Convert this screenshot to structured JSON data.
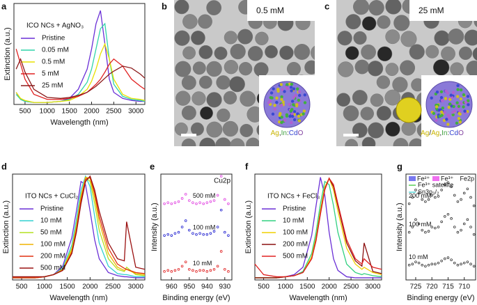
{
  "chart_data": [
    {
      "panel": "a",
      "type": "line",
      "title": "ICO NCs + AgNO₃",
      "xlabel": "Wavelength (nm)",
      "ylabel": "Extinction (a.u.)",
      "x": [
        300,
        400,
        500,
        700,
        1000,
        1300,
        1500,
        1700,
        1900,
        2000,
        2100,
        2200,
        2300,
        2400,
        2500,
        2700,
        2900,
        3100,
        3200
      ],
      "xlim": [
        250,
        3200
      ],
      "xticks": [
        500,
        1000,
        1500,
        2000,
        2500,
        3000
      ],
      "ylim": [
        0,
        1
      ],
      "series": [
        {
          "name": "Pristine",
          "color": "#6a2fd6",
          "values": [
            0.12,
            0.05,
            0.03,
            0.02,
            0.02,
            0.03,
            0.06,
            0.15,
            0.35,
            0.55,
            0.8,
            0.93,
            0.6,
            0.25,
            0.12,
            0.06,
            0.04,
            0.03,
            0.03
          ]
        },
        {
          "name": "0.05 mM",
          "color": "#2fd4a8",
          "values": [
            0.1,
            0.05,
            0.03,
            0.02,
            0.02,
            0.03,
            0.05,
            0.1,
            0.22,
            0.35,
            0.55,
            0.75,
            0.8,
            0.45,
            0.2,
            0.08,
            0.05,
            0.04,
            0.03
          ]
        },
        {
          "name": "0.5 mM",
          "color": "#e8e000",
          "values": [
            0.12,
            0.06,
            0.04,
            0.02,
            0.02,
            0.03,
            0.04,
            0.08,
            0.15,
            0.23,
            0.35,
            0.5,
            0.6,
            0.45,
            0.25,
            0.1,
            0.06,
            0.05,
            0.04
          ]
        },
        {
          "name": "5 mM",
          "color": "#e02020",
          "values": [
            0.55,
            0.4,
            0.25,
            0.1,
            0.05,
            0.05,
            0.06,
            0.08,
            0.12,
            0.16,
            0.2,
            0.25,
            0.32,
            0.4,
            0.45,
            0.38,
            0.25,
            0.18,
            0.15
          ]
        },
        {
          "name": "25 mM",
          "color": "#8b1a1a",
          "values": [
            0.35,
            0.45,
            0.32,
            0.15,
            0.07,
            0.06,
            0.07,
            0.09,
            0.12,
            0.15,
            0.18,
            0.22,
            0.26,
            0.3,
            0.33,
            0.38,
            0.36,
            0.3,
            0.26
          ]
        }
      ]
    },
    {
      "panel": "d",
      "type": "line",
      "title": "ITO NCs + CuCl₂",
      "xlabel": "Wavelength (nm)",
      "ylabel": "Extinction (a.u.)",
      "x": [
        300,
        500,
        800,
        1000,
        1200,
        1400,
        1600,
        1700,
        1800,
        1900,
        2000,
        2100,
        2200,
        2400,
        2600,
        2750,
        2800,
        3000,
        3200
      ],
      "xlim": [
        300,
        3200
      ],
      "xticks": [
        500,
        1000,
        1500,
        2000,
        2500,
        3000
      ],
      "ylim": [
        0,
        1
      ],
      "series": [
        {
          "name": "Pristine",
          "color": "#6a2fd6",
          "values": [
            0.02,
            0.02,
            0.02,
            0.03,
            0.05,
            0.13,
            0.4,
            0.65,
            0.93,
            0.9,
            0.65,
            0.38,
            0.2,
            0.07,
            0.04,
            0.03,
            0.03,
            0.02,
            0.02
          ]
        },
        {
          "name": "10 mM",
          "color": "#30d0d0",
          "values": [
            0.02,
            0.02,
            0.02,
            0.03,
            0.05,
            0.11,
            0.33,
            0.57,
            0.85,
            0.98,
            0.88,
            0.6,
            0.35,
            0.13,
            0.06,
            0.05,
            0.05,
            0.03,
            0.03
          ]
        },
        {
          "name": "50 mM",
          "color": "#b4e020",
          "values": [
            0.02,
            0.02,
            0.02,
            0.03,
            0.05,
            0.1,
            0.3,
            0.52,
            0.8,
            0.97,
            0.93,
            0.72,
            0.47,
            0.2,
            0.1,
            0.08,
            0.12,
            0.05,
            0.04
          ]
        },
        {
          "name": "100 mM",
          "color": "#f0b400",
          "values": [
            0.02,
            0.02,
            0.02,
            0.03,
            0.05,
            0.1,
            0.28,
            0.5,
            0.78,
            0.97,
            0.96,
            0.78,
            0.55,
            0.25,
            0.12,
            0.09,
            0.1,
            0.06,
            0.05
          ]
        },
        {
          "name": "200 mM",
          "color": "#e03010",
          "values": [
            0.02,
            0.02,
            0.02,
            0.03,
            0.05,
            0.09,
            0.26,
            0.47,
            0.75,
            0.95,
            0.97,
            0.82,
            0.6,
            0.3,
            0.15,
            0.11,
            0.1,
            0.07,
            0.06
          ]
        },
        {
          "name": "500 mM",
          "color": "#9a1010",
          "values": [
            0.03,
            0.03,
            0.03,
            0.03,
            0.05,
            0.09,
            0.25,
            0.45,
            0.72,
            0.93,
            0.98,
            0.85,
            0.65,
            0.35,
            0.2,
            0.18,
            0.55,
            0.12,
            0.1
          ]
        }
      ]
    },
    {
      "panel": "e",
      "type": "scatter",
      "title": "Cu2p",
      "xlabel": "Binding energy (eV)",
      "ylabel": "Intensity (a.u.)",
      "x": [
        964,
        962,
        960,
        958,
        956,
        954,
        952,
        950,
        948,
        946,
        944,
        942,
        940,
        938,
        936,
        934,
        932,
        930,
        928
      ],
      "xlim": [
        966,
        926
      ],
      "xticks": [
        960,
        950,
        940,
        930
      ],
      "ylim": [
        0,
        1
      ],
      "series": [
        {
          "name": "500 mM",
          "color": "#e040e0",
          "values": [
            0.72,
            0.73,
            0.72,
            0.73,
            0.74,
            0.77,
            0.81,
            0.75,
            0.73,
            0.72,
            0.73,
            0.72,
            0.73,
            0.74,
            0.75,
            0.8,
            0.98,
            0.76,
            0.72
          ]
        },
        {
          "name": "100 mM",
          "color": "#2020d0",
          "values": [
            0.42,
            0.43,
            0.42,
            0.44,
            0.45,
            0.5,
            0.56,
            0.47,
            0.44,
            0.43,
            0.44,
            0.43,
            0.43,
            0.44,
            0.46,
            0.5,
            0.66,
            0.45,
            0.42
          ]
        },
        {
          "name": "10 mM",
          "color": "#e02020",
          "values": [
            0.08,
            0.09,
            0.08,
            0.09,
            0.1,
            0.13,
            0.17,
            0.1,
            0.09,
            0.08,
            0.09,
            0.09,
            0.08,
            0.09,
            0.1,
            0.13,
            0.27,
            0.1,
            0.08
          ]
        }
      ]
    },
    {
      "panel": "f",
      "type": "line",
      "title": "ITO NCs + FeCl₃",
      "xlabel": "Wavelength (nm)",
      "ylabel": "Extinction (a.u.)",
      "x": [
        300,
        500,
        800,
        1000,
        1200,
        1400,
        1600,
        1700,
        1800,
        1900,
        2000,
        2100,
        2200,
        2400,
        2600,
        2750,
        2800,
        3000,
        3200
      ],
      "xlim": [
        300,
        3200
      ],
      "xticks": [
        500,
        1000,
        1500,
        2000,
        2500,
        3000
      ],
      "ylim": [
        0,
        1
      ],
      "series": [
        {
          "name": "Pristine",
          "color": "#6a2fd6",
          "values": [
            0.02,
            0.02,
            0.02,
            0.03,
            0.05,
            0.12,
            0.42,
            0.7,
            0.97,
            0.8,
            0.45,
            0.2,
            0.09,
            0.03,
            0.02,
            0.02,
            0.02,
            0.02,
            0.02
          ]
        },
        {
          "name": "10 mM",
          "color": "#30d080",
          "values": [
            0.02,
            0.02,
            0.02,
            0.03,
            0.04,
            0.08,
            0.25,
            0.45,
            0.72,
            0.93,
            0.9,
            0.7,
            0.45,
            0.15,
            0.07,
            0.05,
            0.06,
            0.04,
            0.03
          ]
        },
        {
          "name": "100 mM",
          "color": "#f0d000",
          "values": [
            0.02,
            0.02,
            0.02,
            0.03,
            0.04,
            0.07,
            0.22,
            0.4,
            0.66,
            0.88,
            0.96,
            0.85,
            0.65,
            0.3,
            0.15,
            0.1,
            0.12,
            0.07,
            0.05
          ]
        },
        {
          "name": "200 mM",
          "color": "#8b1010",
          "values": [
            0.02,
            0.02,
            0.02,
            0.03,
            0.04,
            0.07,
            0.2,
            0.38,
            0.63,
            0.86,
            0.96,
            0.88,
            0.7,
            0.35,
            0.18,
            0.13,
            0.35,
            0.08,
            0.06
          ]
        },
        {
          "name": "500 mM",
          "color": "#e02020",
          "values": [
            0.15,
            0.05,
            0.03,
            0.03,
            0.04,
            0.07,
            0.2,
            0.37,
            0.62,
            0.85,
            0.96,
            0.9,
            0.72,
            0.38,
            0.2,
            0.15,
            0.2,
            0.12,
            0.1
          ]
        }
      ]
    },
    {
      "panel": "g",
      "type": "scatter",
      "title": "Fe2p",
      "xlabel": "Binding energy (eV)",
      "ylabel": "Intensity (a.u.)",
      "x": [
        727,
        726,
        725,
        724,
        723,
        722,
        721,
        720,
        719,
        718,
        717,
        716,
        715,
        714,
        713,
        712,
        711,
        710,
        709,
        708,
        707
      ],
      "xlim": [
        728,
        706.5
      ],
      "xticks": [
        725,
        720,
        715,
        710
      ],
      "ylim": [
        0,
        1
      ],
      "legend": [
        {
          "name": "Fe²⁺",
          "color": "#7878f0",
          "kind": "fill"
        },
        {
          "name": "Fe³⁺",
          "color": "#f070f0",
          "kind": "fill"
        },
        {
          "name": "Fe³⁺ satellite",
          "color": "#30c030",
          "kind": "line"
        },
        {
          "name": "Sn3p₃/₂",
          "color": "#30d0d0",
          "kind": "line"
        }
      ],
      "series": [
        {
          "name": "200 mM",
          "color": "#333333",
          "values": [
            0.72,
            0.78,
            0.85,
            0.82,
            0.76,
            0.74,
            0.76,
            0.8,
            0.78,
            0.79,
            0.85,
            0.9,
            0.92,
            0.88,
            0.8,
            0.74,
            0.76,
            0.82,
            0.86,
            0.78,
            0.7
          ]
        },
        {
          "name": "100 mM",
          "color": "#333333",
          "values": [
            0.45,
            0.5,
            0.57,
            0.53,
            0.47,
            0.45,
            0.46,
            0.5,
            0.49,
            0.5,
            0.55,
            0.6,
            0.62,
            0.58,
            0.5,
            0.45,
            0.47,
            0.53,
            0.57,
            0.5,
            0.43
          ]
        },
        {
          "name": "10 mM",
          "color": "#333333",
          "values": [
            0.14,
            0.15,
            0.17,
            0.16,
            0.14,
            0.13,
            0.14,
            0.15,
            0.15,
            0.16,
            0.18,
            0.2,
            0.21,
            0.19,
            0.16,
            0.14,
            0.15,
            0.16,
            0.17,
            0.15,
            0.13
          ]
        }
      ]
    }
  ],
  "images": [
    {
      "panel": "b",
      "label": "0.5 mM",
      "caption": [
        {
          "text": "Ag",
          "color": "#c8b400"
        },
        {
          "text": ",",
          "color": "#222222"
        },
        {
          "text": "In",
          "color": "#40a040"
        },
        {
          "text": ":",
          "color": "#222222"
        },
        {
          "text": "Cd",
          "color": "#3040d0"
        },
        {
          "text": "O",
          "color": "#8040a0"
        }
      ]
    },
    {
      "panel": "c",
      "label": "25 mM",
      "caption": [
        {
          "text": "Ag",
          "color": "#c8b400"
        },
        {
          "text": "/",
          "color": "#222222"
        },
        {
          "text": "Ag",
          "color": "#c8b400"
        },
        {
          "text": ",",
          "color": "#222222"
        },
        {
          "text": "In",
          "color": "#40a040"
        },
        {
          "text": ":",
          "color": "#222222"
        },
        {
          "text": "Cd",
          "color": "#3040d0"
        },
        {
          "text": "O",
          "color": "#8040a0"
        }
      ]
    }
  ]
}
